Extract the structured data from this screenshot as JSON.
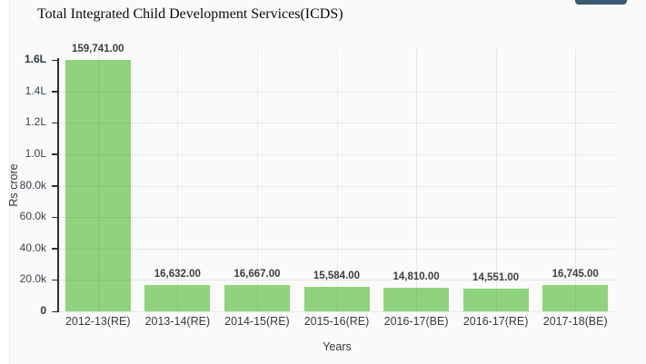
{
  "header": {
    "toolbar_button_label": ""
  },
  "chart_data": {
    "type": "bar",
    "title": "Total Integrated Child Development Services(ICDS)",
    "xlabel": "Years",
    "ylabel": "Rs crore",
    "categories": [
      "2012-13(RE)",
      "2013-14(RE)",
      "2014-15(RE)",
      "2015-16(RE)",
      "2016-17(BE)",
      "2016-17(RE)",
      "2017-18(BE)"
    ],
    "values": [
      159741,
      16632,
      16667,
      15584,
      14810,
      14551,
      16745
    ],
    "value_labels": [
      "159,741.00",
      "16,632.00",
      "16,667.00",
      "15,584.00",
      "14,810.00",
      "14,551.00",
      "16,745.00"
    ],
    "y_tick_labels": [
      "1.6L",
      "1.4L",
      "1.2L",
      "1.0L",
      "80.0k",
      "60.0k",
      "40.0k",
      "20.0k",
      "0"
    ],
    "y_tick_values": [
      160000,
      140000,
      120000,
      100000,
      80000,
      60000,
      40000,
      20000,
      0
    ],
    "ylim": [
      0,
      160000
    ],
    "grid": true,
    "legend_position": "none"
  },
  "colors": {
    "bar": "#8fd37c",
    "axis": "#2e2e2e",
    "toolbar_button": "#3d5c73",
    "container_background": "#fafafa"
  }
}
